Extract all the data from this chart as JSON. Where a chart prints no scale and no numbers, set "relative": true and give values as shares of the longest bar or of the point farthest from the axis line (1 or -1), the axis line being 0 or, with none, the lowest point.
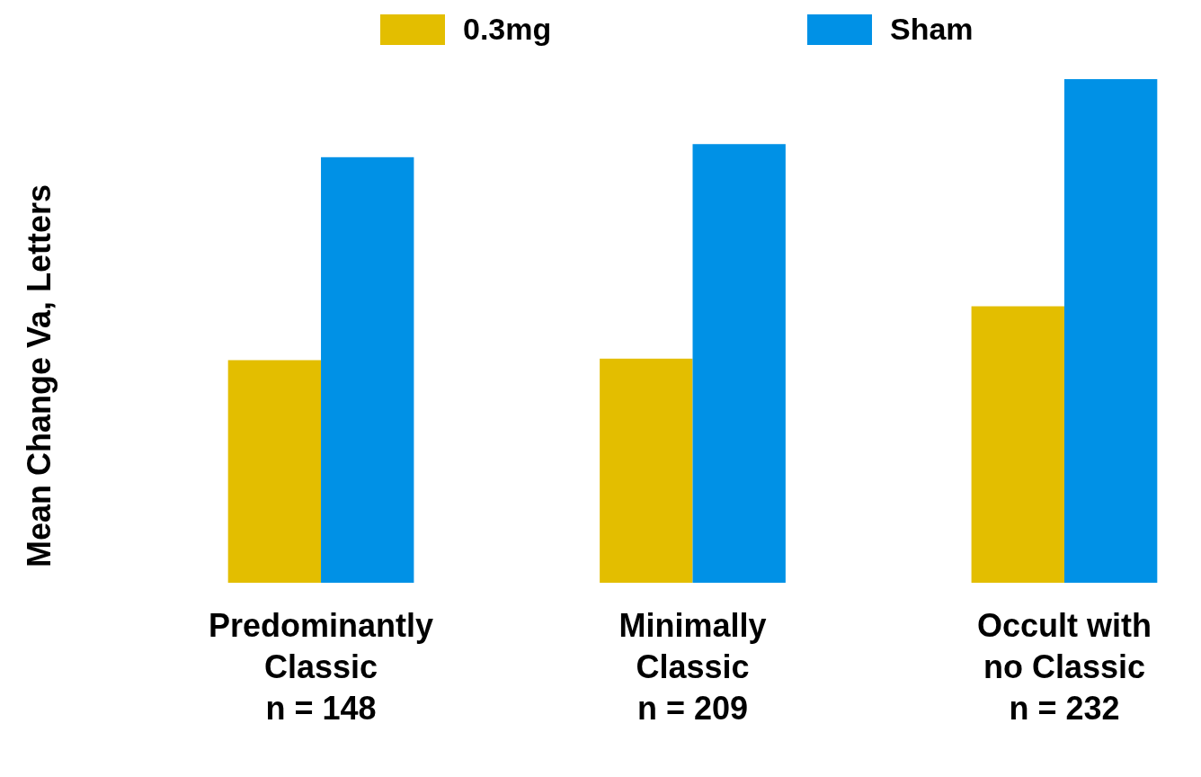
{
  "chart_data": {
    "type": "bar",
    "relative": true,
    "ylabel": "Mean Change Va, Letters",
    "legend": "top",
    "categories": [
      "Predominantly\nClassic\nn = 148",
      "Minimally\nClassic\nn = 209",
      "Occult with\nno Classic\nn = 232"
    ],
    "series": [
      {
        "name": "0.3mg",
        "color": "#e3be00",
        "values": [
          0.442,
          0.445,
          0.549
        ]
      },
      {
        "name": "Sham",
        "color": "#0091e6",
        "values": [
          0.845,
          0.871,
          1
        ]
      }
    ]
  }
}
